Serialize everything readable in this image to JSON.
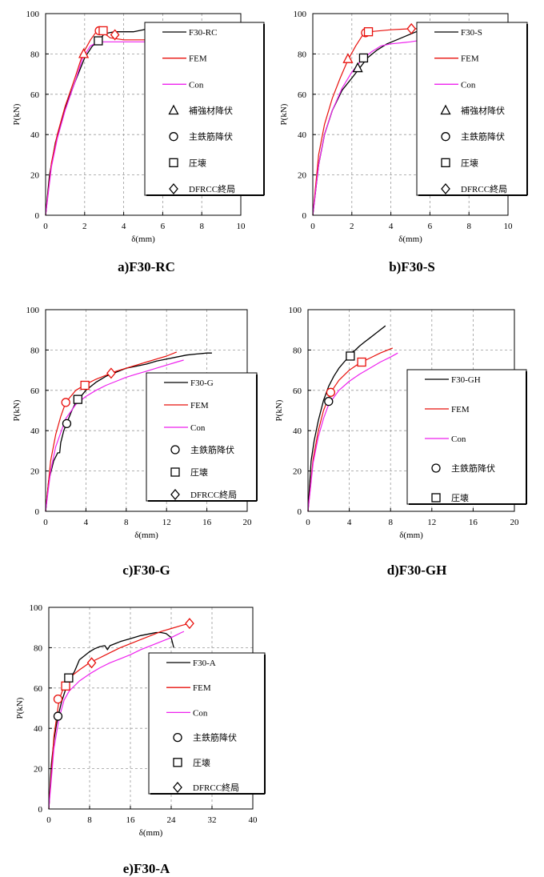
{
  "colors": {
    "experiment": "#000000",
    "fem": "#e8100c",
    "con": "#ee22ee",
    "grid": "#9a9a9a"
  },
  "chart_data": [
    {
      "type": "line",
      "caption": "a)F30-RC",
      "xlabel": "δ(mm)",
      "ylabel": "P(kN)",
      "xlim": [
        0,
        10
      ],
      "ylim": [
        0,
        100
      ],
      "xticks": [
        0,
        2,
        4,
        6,
        8,
        10
      ],
      "yticks": [
        0,
        20,
        40,
        60,
        80,
        100
      ],
      "grid": true,
      "legend_position": "right",
      "series": [
        {
          "name": "F30-RC",
          "style": "experiment",
          "x": [
            0,
            0.2,
            0.5,
            1,
            1.5,
            2,
            2.4,
            2.7,
            3.0,
            3.5,
            4.0,
            4.5,
            5.0,
            5.4,
            5.7
          ],
          "y": [
            0,
            20,
            36,
            53,
            66,
            78,
            84,
            86,
            90,
            91,
            91,
            91,
            92,
            93,
            93
          ]
        },
        {
          "name": "FEM",
          "style": "fem",
          "x": [
            0,
            0.3,
            0.6,
            1,
            1.5,
            1.9,
            2.3,
            2.6,
            2.9,
            3.3,
            4.0,
            5.0,
            5.4
          ],
          "y": [
            0,
            26,
            40,
            54,
            68,
            80,
            87,
            91,
            91,
            88,
            87,
            87,
            87
          ]
        },
        {
          "name": "Con",
          "style": "con",
          "x": [
            0,
            0.3,
            0.6,
            1,
            1.5,
            1.9,
            2.3,
            2.7,
            3.2,
            4.0,
            5.0,
            5.4
          ],
          "y": [
            0,
            24,
            38,
            52,
            66,
            78,
            84,
            86,
            86,
            86,
            86,
            86
          ]
        }
      ],
      "markers": [
        {
          "name": "補強材降伏",
          "symbol": "triangle",
          "points": [
            {
              "x": 1.95,
              "y": 80,
              "series": "fem"
            }
          ]
        },
        {
          "name": "主鉄筋降伏",
          "symbol": "circle",
          "points": [
            {
              "x": 2.75,
              "y": 91.5,
              "series": "fem"
            }
          ]
        },
        {
          "name": "圧壊",
          "symbol": "square",
          "points": [
            {
              "x": 2.7,
              "y": 86.5,
              "series": "experiment"
            },
            {
              "x": 2.95,
              "y": 91.5,
              "series": "fem"
            }
          ]
        },
        {
          "name": "DFRCC終局",
          "symbol": "diamond",
          "points": [
            {
              "x": 3.55,
              "y": 89.5,
              "series": "fem"
            }
          ]
        }
      ]
    },
    {
      "type": "line",
      "caption": "b)F30-S",
      "xlabel": "δ(mm)",
      "ylabel": "P(kN)",
      "xlim": [
        0,
        10
      ],
      "ylim": [
        0,
        100
      ],
      "xticks": [
        0,
        2,
        4,
        6,
        8,
        10
      ],
      "yticks": [
        0,
        20,
        40,
        60,
        80,
        100
      ],
      "grid": true,
      "legend_position": "right",
      "series": [
        {
          "name": "F30-S",
          "style": "experiment",
          "x": [
            0,
            0.3,
            0.6,
            1.0,
            1.5,
            2.0,
            2.4,
            2.8,
            3.3,
            3.8,
            4.3,
            4.8,
            5.3,
            5.8,
            6.2
          ],
          "y": [
            0,
            25,
            40,
            52,
            62,
            68,
            73,
            78,
            82,
            85,
            87,
            89,
            91,
            92,
            93
          ]
        },
        {
          "name": "FEM",
          "style": "fem",
          "x": [
            0,
            0.3,
            0.6,
            1.0,
            1.4,
            1.8,
            2.2,
            2.6,
            2.9,
            4.0,
            5.0,
            5.5
          ],
          "y": [
            0,
            30,
            45,
            58,
            68,
            77,
            84,
            90,
            91,
            92,
            92.5,
            92.5
          ]
        },
        {
          "name": "Con",
          "style": "con",
          "x": [
            0,
            0.3,
            0.6,
            1.0,
            1.5,
            2.0,
            2.5,
            3.0,
            3.5,
            4.0,
            5.0,
            6.0,
            6.5
          ],
          "y": [
            0,
            25,
            40,
            52,
            63,
            71,
            77,
            81,
            84,
            85,
            86,
            87.5,
            88
          ]
        }
      ],
      "markers": [
        {
          "name": "補強材降伏",
          "symbol": "triangle",
          "points": [
            {
              "x": 1.8,
              "y": 77.5,
              "series": "fem"
            },
            {
              "x": 2.3,
              "y": 73,
              "series": "experiment"
            }
          ]
        },
        {
          "name": "主鉄筋降伏",
          "symbol": "circle",
          "points": [
            {
              "x": 2.7,
              "y": 90.5,
              "series": "fem"
            }
          ]
        },
        {
          "name": "圧壊",
          "symbol": "square",
          "points": [
            {
              "x": 2.6,
              "y": 78,
              "series": "experiment"
            },
            {
              "x": 2.85,
              "y": 91,
              "series": "fem"
            }
          ]
        },
        {
          "name": "DFRCC終局",
          "symbol": "diamond",
          "points": [
            {
              "x": 5.05,
              "y": 92.5,
              "series": "fem"
            }
          ]
        }
      ]
    },
    {
      "type": "line",
      "caption": "c)F30-G",
      "xlabel": "δ(mm)",
      "ylabel": "P(kN)",
      "xlim": [
        0,
        20
      ],
      "ylim": [
        0,
        100
      ],
      "xticks": [
        0,
        4,
        8,
        12,
        16,
        20
      ],
      "yticks": [
        0,
        20,
        40,
        60,
        80,
        100
      ],
      "grid": true,
      "legend_position": "right",
      "series": [
        {
          "name": "F30-G",
          "style": "experiment",
          "x": [
            0,
            0.3,
            0.8,
            1.2,
            1.4,
            1.5,
            1.8,
            2.2,
            2.6,
            3.0,
            4.0,
            5.0,
            6.0,
            7.0,
            8.0,
            9.0,
            10.0,
            11.0,
            12.0,
            13.0,
            14.0,
            15.0,
            16.0,
            16.5
          ],
          "y": [
            0,
            15,
            25,
            29,
            29,
            34,
            40,
            45,
            50,
            54,
            60,
            64,
            67,
            69,
            71,
            72,
            73,
            74.5,
            75.5,
            76.5,
            77.5,
            78,
            78.5,
            78.5
          ]
        },
        {
          "name": "FEM",
          "style": "fem",
          "x": [
            0,
            0.5,
            1,
            1.5,
            2,
            3,
            4,
            5,
            6,
            7,
            8,
            9,
            10,
            11,
            12,
            13
          ],
          "y": [
            0,
            25,
            38,
            47,
            54,
            60,
            63,
            65.5,
            67.5,
            69.5,
            71,
            72.5,
            74,
            75.5,
            77,
            79
          ]
        },
        {
          "name": "Con",
          "style": "con",
          "x": [
            0,
            0.5,
            1,
            2,
            3,
            4,
            5,
            6,
            7,
            8,
            9,
            10,
            11,
            12,
            13,
            13.7
          ],
          "y": [
            0,
            20,
            32,
            46,
            53,
            57,
            60,
            62.5,
            64.5,
            66.5,
            68,
            69.5,
            71,
            72.5,
            74,
            75
          ]
        }
      ],
      "markers": [
        {
          "name": "主鉄筋降伏",
          "symbol": "circle",
          "points": [
            {
              "x": 2.0,
              "y": 54,
              "series": "fem"
            },
            {
              "x": 2.1,
              "y": 43.5,
              "series": "experiment"
            }
          ]
        },
        {
          "name": "圧壊",
          "symbol": "square",
          "points": [
            {
              "x": 3.2,
              "y": 55.5,
              "series": "experiment"
            },
            {
              "x": 3.9,
              "y": 62.5,
              "series": "fem"
            }
          ]
        },
        {
          "name": "DFRCC終局",
          "symbol": "diamond",
          "points": [
            {
              "x": 6.5,
              "y": 68.5,
              "series": "fem"
            }
          ]
        }
      ]
    },
    {
      "type": "line",
      "caption": "d)F30-GH",
      "xlabel": "δ(mm)",
      "ylabel": "P(kN)",
      "xlim": [
        0,
        20
      ],
      "ylim": [
        0,
        100
      ],
      "xticks": [
        0,
        4,
        8,
        12,
        16,
        20
      ],
      "yticks": [
        0,
        20,
        40,
        60,
        80,
        100
      ],
      "grid": true,
      "legend_position": "right",
      "series": [
        {
          "name": "F30-GH",
          "style": "experiment",
          "x": [
            0,
            0.3,
            0.6,
            1,
            1.5,
            2.0,
            2.5,
            3.0,
            3.5,
            4.0,
            4.3,
            4.6,
            5.0,
            5.5,
            6.0,
            6.5,
            7.0,
            7.5
          ],
          "y": [
            0,
            25,
            35,
            45,
            55,
            62,
            67,
            71,
            74,
            77,
            79,
            80,
            82,
            84,
            86,
            88,
            90,
            92
          ]
        },
        {
          "name": "FEM",
          "style": "fem",
          "x": [
            0,
            0.5,
            1,
            1.5,
            2.2,
            3,
            4,
            5,
            6,
            7,
            8.2
          ],
          "y": [
            0,
            26,
            40,
            50,
            59,
            65,
            70,
            73.5,
            76,
            78.5,
            81
          ]
        },
        {
          "name": "Con",
          "style": "con",
          "x": [
            0,
            0.5,
            1,
            1.5,
            2,
            3,
            4,
            5,
            6,
            7,
            8,
            8.7
          ],
          "y": [
            0,
            24,
            37,
            46,
            53,
            60,
            64.5,
            68,
            71,
            74,
            76.5,
            78.5
          ]
        }
      ],
      "markers": [
        {
          "name": "主鉄筋降伏",
          "symbol": "circle",
          "points": [
            {
              "x": 2.2,
              "y": 59,
              "series": "fem"
            },
            {
              "x": 2.0,
              "y": 54.5,
              "series": "experiment"
            }
          ]
        },
        {
          "name": "圧壊",
          "symbol": "square",
          "points": [
            {
              "x": 4.1,
              "y": 77,
              "series": "experiment"
            },
            {
              "x": 5.2,
              "y": 74,
              "series": "fem"
            }
          ]
        }
      ]
    },
    {
      "type": "line",
      "caption": "e)F30-A",
      "xlabel": "δ(mm)",
      "ylabel": "P(kN)",
      "xlim": [
        0,
        40
      ],
      "ylim": [
        0,
        100
      ],
      "xticks": [
        0,
        8,
        16,
        24,
        32,
        40
      ],
      "yticks": [
        0,
        20,
        40,
        60,
        80,
        100
      ],
      "grid": true,
      "legend_position": "right",
      "series": [
        {
          "name": "F30-A",
          "style": "experiment",
          "x": [
            0,
            0.5,
            1,
            1.5,
            2,
            2.5,
            3,
            3.5,
            4,
            4.5,
            5,
            5.5,
            6,
            7,
            8,
            9,
            10,
            11,
            11.5,
            12,
            13,
            14,
            16,
            18,
            20,
            21,
            22,
            23,
            24,
            24.5
          ],
          "y": [
            0,
            22,
            34,
            42,
            48,
            53,
            57,
            61,
            64,
            66,
            68,
            71,
            74,
            76,
            78,
            79.5,
            80.5,
            81,
            79,
            81,
            82,
            83,
            84.5,
            86,
            87,
            87.5,
            87.5,
            87,
            85,
            80
          ]
        },
        {
          "name": "FEM",
          "style": "fem",
          "x": [
            0,
            1,
            2,
            3,
            4,
            6,
            8,
            10,
            12,
            14,
            16,
            18,
            20,
            22,
            24,
            26,
            27.5
          ],
          "y": [
            0,
            36,
            54,
            61,
            65,
            69,
            72.5,
            75,
            77.5,
            80,
            82,
            84,
            86,
            88,
            89.5,
            91,
            92
          ]
        },
        {
          "name": "Con",
          "style": "con",
          "x": [
            0,
            1,
            2,
            3,
            4,
            6,
            8,
            10,
            12,
            14,
            16,
            18,
            20,
            22,
            24,
            26,
            26.5
          ],
          "y": [
            0,
            30,
            45,
            54,
            58.5,
            63.5,
            67,
            70,
            72.5,
            74.5,
            76.5,
            79,
            81,
            83,
            85,
            87.5,
            88
          ]
        }
      ],
      "markers": [
        {
          "name": "主鉄筋降伏",
          "symbol": "circle",
          "points": [
            {
              "x": 1.8,
              "y": 54.5,
              "series": "fem"
            },
            {
              "x": 1.8,
              "y": 46,
              "series": "experiment"
            }
          ]
        },
        {
          "name": "圧壊",
          "symbol": "square",
          "points": [
            {
              "x": 3.3,
              "y": 61,
              "series": "fem"
            },
            {
              "x": 3.9,
              "y": 65,
              "series": "experiment"
            }
          ]
        },
        {
          "name": "DFRCC終局",
          "symbol": "diamond",
          "points": [
            {
              "x": 8.4,
              "y": 72.5,
              "series": "fem"
            },
            {
              "x": 27.6,
              "y": 92,
              "series": "fem"
            }
          ]
        }
      ]
    }
  ]
}
